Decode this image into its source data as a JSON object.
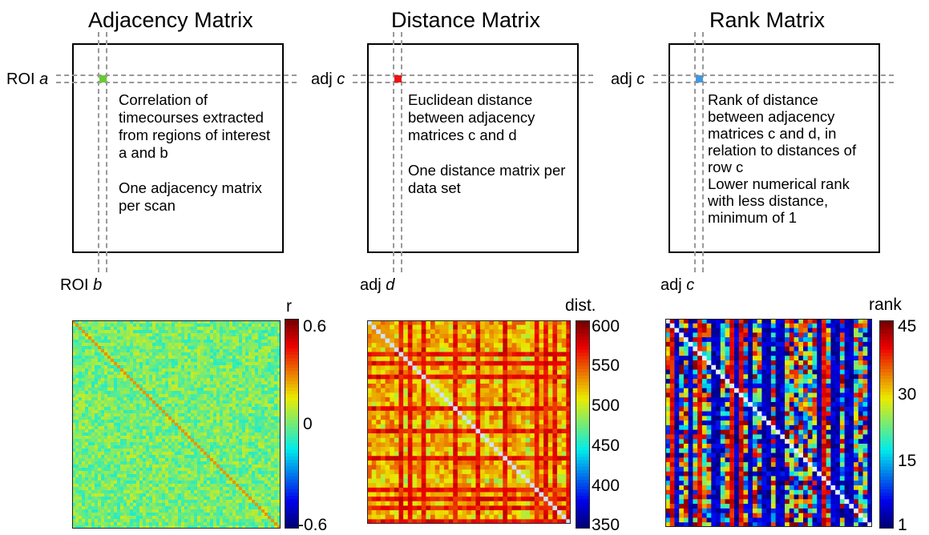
{
  "panels": [
    {
      "title": "Adjacency Matrix",
      "row_label_prefix": "ROI ",
      "row_label_var": "a",
      "col_label_prefix": "ROI ",
      "col_label_var": "b",
      "description": [
        "Correlation of timecourses extracted from regions of interest a and b",
        "One adjacency matrix per scan"
      ],
      "marker_color": "#66cc33",
      "colorbar": {
        "label": "r",
        "ticks": [
          "0.6",
          "0",
          "-0.6"
        ]
      }
    },
    {
      "title": "Distance Matrix",
      "row_label_prefix": "adj ",
      "row_label_var": "c",
      "col_label_prefix": "adj ",
      "col_label_var": "d",
      "description": [
        "Euclidean distance between adjacency matrices c and d",
        "One distance matrix per data set"
      ],
      "marker_color": "#ee1111",
      "colorbar": {
        "label": "dist.",
        "ticks": [
          "600",
          "550",
          "500",
          "450",
          "400",
          "350"
        ]
      }
    },
    {
      "title": "Rank Matrix",
      "row_label_prefix": "adj ",
      "row_label_var": "c",
      "col_label_prefix": "adj ",
      "col_label_var": "c",
      "description": [
        "Rank of distance between adjacency matrices c and d, in relation to distances of row c",
        "Lower numerical rank with less distance, minimum of 1"
      ],
      "marker_color": "#4499dd",
      "colorbar": {
        "label": "rank",
        "ticks": [
          "45",
          "30",
          "15",
          "1"
        ]
      }
    }
  ]
}
